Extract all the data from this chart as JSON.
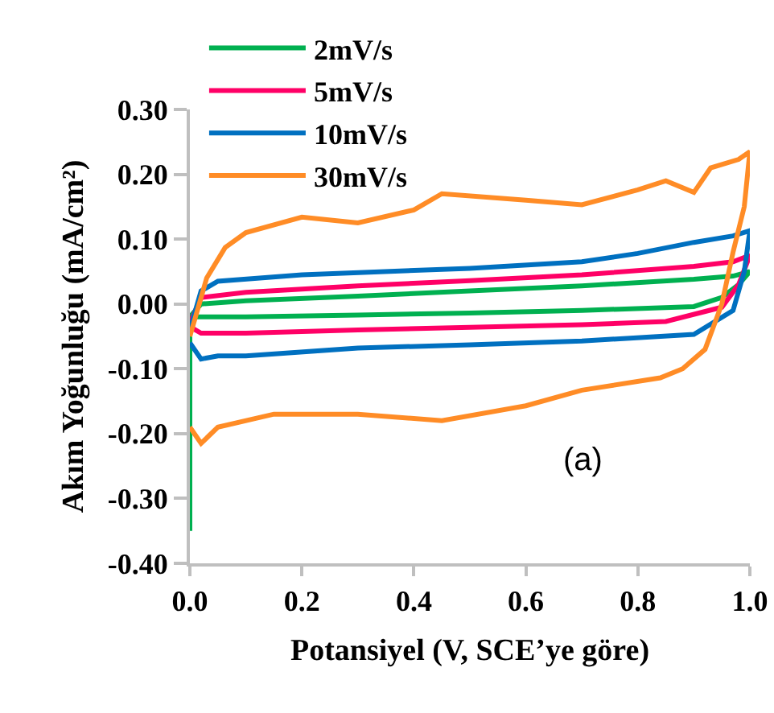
{
  "chart_data": {
    "type": "line",
    "xlabel": "Potansiyel (V, SCE’ye göre)",
    "ylabel": "Akım Yoğunluğu (mA/cm²)",
    "xlim": [
      0,
      1
    ],
    "xticks": [
      {
        "value": 0,
        "label": "0.0"
      },
      {
        "value": 0.2,
        "label": "0.2"
      },
      {
        "value": 0.4,
        "label": "0.4"
      },
      {
        "value": 0.6,
        "label": "0.6"
      },
      {
        "value": 0.8,
        "label": "0.8"
      },
      {
        "value": 1,
        "label": "1.0"
      }
    ],
    "ylim": [
      -0.4,
      0.3
    ],
    "yticks": [
      {
        "value": -0.4,
        "label": "-0.40"
      },
      {
        "value": -0.3,
        "label": "-0.30"
      },
      {
        "value": -0.2,
        "label": "-0.20"
      },
      {
        "value": -0.1,
        "label": "-0.10"
      },
      {
        "value": 0,
        "label": "0.00"
      },
      {
        "value": 0.1,
        "label": "0.10"
      },
      {
        "value": 0.2,
        "label": "0.20"
      },
      {
        "value": 0.3,
        "label": "0.30"
      }
    ],
    "grid": false,
    "legend": "top left",
    "marker": "none",
    "line_style": "solid",
    "annotations": [
      "(a)"
    ],
    "series": [
      {
        "name": "2mV/s",
        "color": "#00b050",
        "x": [
          0,
          0,
          0.02,
          0.1,
          0.3,
          0.5,
          0.7,
          0.9,
          0.97,
          1,
          0.98,
          0.95,
          0.9,
          0.7,
          0.5,
          0.3,
          0.1,
          0.02,
          0
        ],
        "values": [
          -0.35,
          -0.02,
          0.0,
          0.005,
          0.012,
          0.02,
          0.028,
          0.038,
          0.043,
          0.05,
          0.03,
          0.01,
          -0.004,
          -0.01,
          -0.014,
          -0.017,
          -0.02,
          -0.02,
          -0.02
        ]
      },
      {
        "name": "5mV/s",
        "color": "#ff0066",
        "x": [
          0,
          0.02,
          0.1,
          0.3,
          0.5,
          0.7,
          0.9,
          0.97,
          1,
          0.98,
          0.95,
          0.85,
          0.7,
          0.5,
          0.3,
          0.1,
          0.02,
          0
        ],
        "values": [
          -0.03,
          0.01,
          0.018,
          0.028,
          0.036,
          0.045,
          0.058,
          0.065,
          0.075,
          0.03,
          -0.005,
          -0.027,
          -0.032,
          -0.036,
          -0.04,
          -0.045,
          -0.045,
          -0.035
        ]
      },
      {
        "name": "10mV/s",
        "color": "#0070c0",
        "x": [
          0,
          0.02,
          0.05,
          0.2,
          0.5,
          0.7,
          0.8,
          0.9,
          0.97,
          1,
          0.99,
          0.97,
          0.9,
          0.7,
          0.5,
          0.3,
          0.1,
          0.05,
          0.02,
          0
        ],
        "values": [
          -0.04,
          0.02,
          0.035,
          0.045,
          0.055,
          0.065,
          0.078,
          0.095,
          0.105,
          0.113,
          0.05,
          -0.01,
          -0.047,
          -0.057,
          -0.063,
          -0.068,
          -0.08,
          -0.08,
          -0.085,
          -0.06
        ]
      },
      {
        "name": "30mV/s",
        "color": "#ff8c26",
        "x": [
          0,
          0.03,
          0.063,
          0.1,
          0.2,
          0.3,
          0.4,
          0.45,
          0.6,
          0.7,
          0.8,
          0.85,
          0.9,
          0.93,
          0.98,
          1,
          0.99,
          0.97,
          0.95,
          0.92,
          0.88,
          0.84,
          0.7,
          0.6,
          0.45,
          0.3,
          0.15,
          0.05,
          0.02,
          0
        ],
        "values": [
          -0.05,
          0.04,
          0.087,
          0.11,
          0.134,
          0.125,
          0.145,
          0.17,
          0.16,
          0.153,
          0.176,
          0.19,
          0.172,
          0.21,
          0.223,
          0.235,
          0.15,
          0.08,
          0.0,
          -0.07,
          -0.1,
          -0.114,
          -0.133,
          -0.157,
          -0.18,
          -0.17,
          -0.17,
          -0.19,
          -0.215,
          -0.19
        ]
      }
    ]
  }
}
